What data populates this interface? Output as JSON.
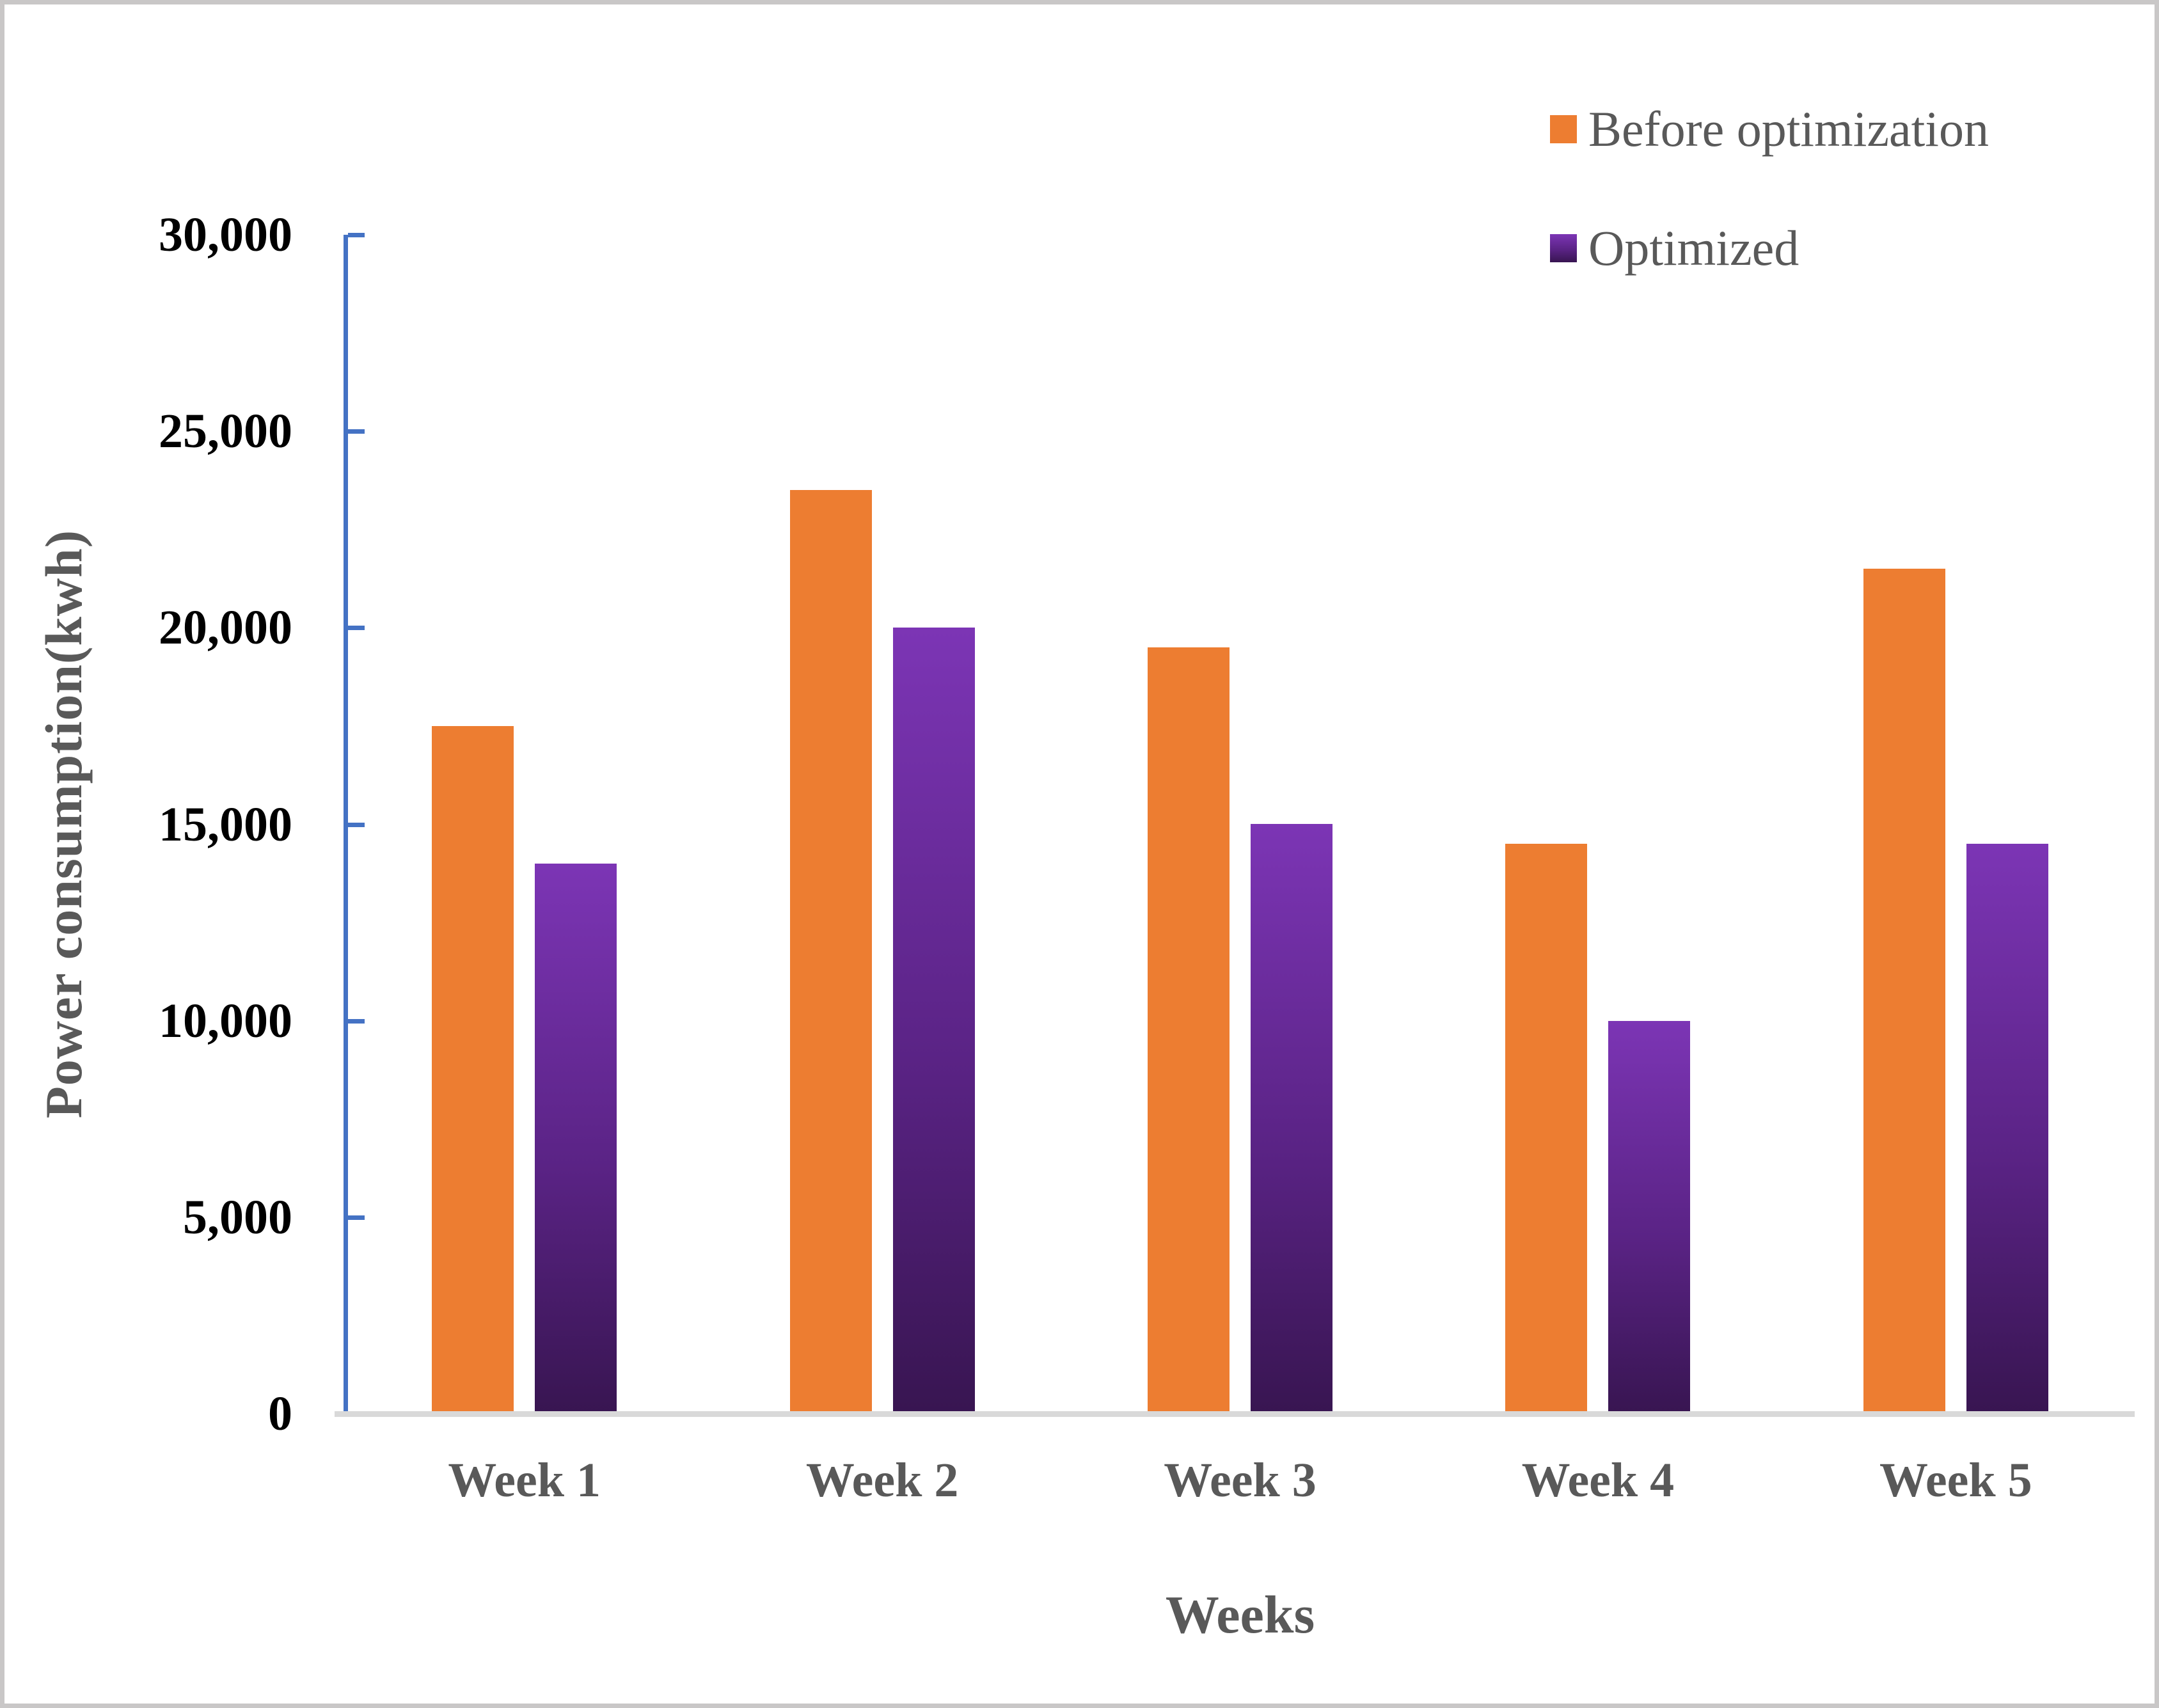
{
  "chart_data": {
    "type": "bar",
    "title": "",
    "categories": [
      "Week 1",
      "Week 2",
      "Week 3",
      "Week 4",
      "Week 5"
    ],
    "series": [
      {
        "name": "Before optimization",
        "values": [
          17500,
          23500,
          19500,
          14500,
          21500
        ]
      },
      {
        "name": "Optimized",
        "values": [
          14000,
          20000,
          15000,
          10000,
          14500
        ]
      }
    ],
    "xlabel": "Weeks",
    "ylabel": "Power consumption(kwh)",
    "ylim": [
      0,
      30000
    ],
    "ytick_step": 5000,
    "ytick_labels": [
      "0",
      "5,000",
      "10,000",
      "15,000",
      "20,000",
      "25,000",
      "30,000"
    ],
    "legend_position": "top-right",
    "grid": false
  },
  "colors": {
    "before_bar": "#ED7D31",
    "optimized_gradient_top": "#7C35B5",
    "optimized_gradient_mid": "#5A2385",
    "optimized_gradient_bottom": "#381551",
    "axis_line": "#4472C4",
    "baseline": "#D9D9D9",
    "tick_text": "#000000",
    "label_text": "#595959",
    "figure_border": "#C9C7C7",
    "background": "#FFFFFF"
  }
}
